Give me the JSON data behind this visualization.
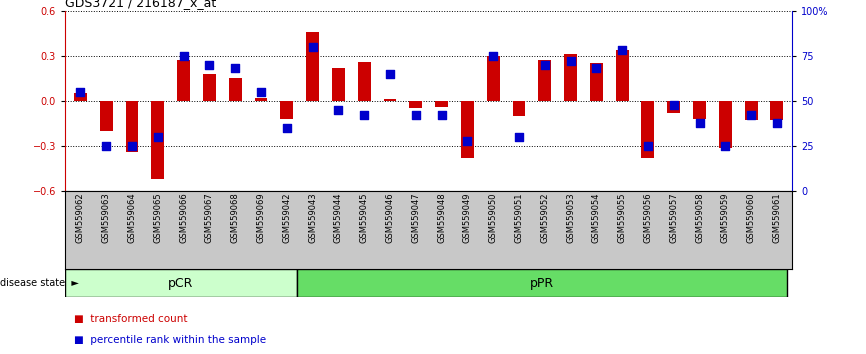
{
  "title": "GDS3721 / 216187_x_at",
  "categories": [
    "GSM559062",
    "GSM559063",
    "GSM559064",
    "GSM559065",
    "GSM559066",
    "GSM559067",
    "GSM559068",
    "GSM559069",
    "GSM559042",
    "GSM559043",
    "GSM559044",
    "GSM559045",
    "GSM559046",
    "GSM559047",
    "GSM559048",
    "GSM559049",
    "GSM559050",
    "GSM559051",
    "GSM559052",
    "GSM559053",
    "GSM559054",
    "GSM559055",
    "GSM559056",
    "GSM559057",
    "GSM559058",
    "GSM559059",
    "GSM559060",
    "GSM559061"
  ],
  "red_values": [
    0.05,
    -0.2,
    -0.34,
    -0.52,
    0.27,
    0.18,
    0.15,
    0.02,
    -0.12,
    0.46,
    0.22,
    0.26,
    0.01,
    -0.05,
    -0.04,
    -0.38,
    0.3,
    -0.1,
    0.27,
    0.31,
    0.25,
    0.34,
    -0.38,
    -0.08,
    -0.12,
    -0.31,
    -0.13,
    -0.13
  ],
  "blue_values": [
    55,
    25,
    25,
    30,
    75,
    70,
    68,
    55,
    35,
    80,
    45,
    42,
    65,
    42,
    42,
    28,
    75,
    30,
    70,
    72,
    68,
    78,
    25,
    48,
    38,
    25,
    42,
    38
  ],
  "pCR_count": 9,
  "ylim": [
    -0.6,
    0.6
  ],
  "y2lim": [
    0,
    100
  ],
  "yticks_left": [
    -0.6,
    -0.3,
    0.0,
    0.3,
    0.6
  ],
  "yticks_right": [
    0,
    25,
    50,
    75,
    100
  ],
  "bar_color": "#cc0000",
  "dot_color": "#0000cc",
  "pCR_color": "#ccffcc",
  "pPR_color": "#66dd66",
  "bar_width": 0.5,
  "dot_size": 35,
  "title_fontsize": 9,
  "tick_fontsize": 7,
  "label_fontsize": 7,
  "legend_fontsize": 7.5
}
